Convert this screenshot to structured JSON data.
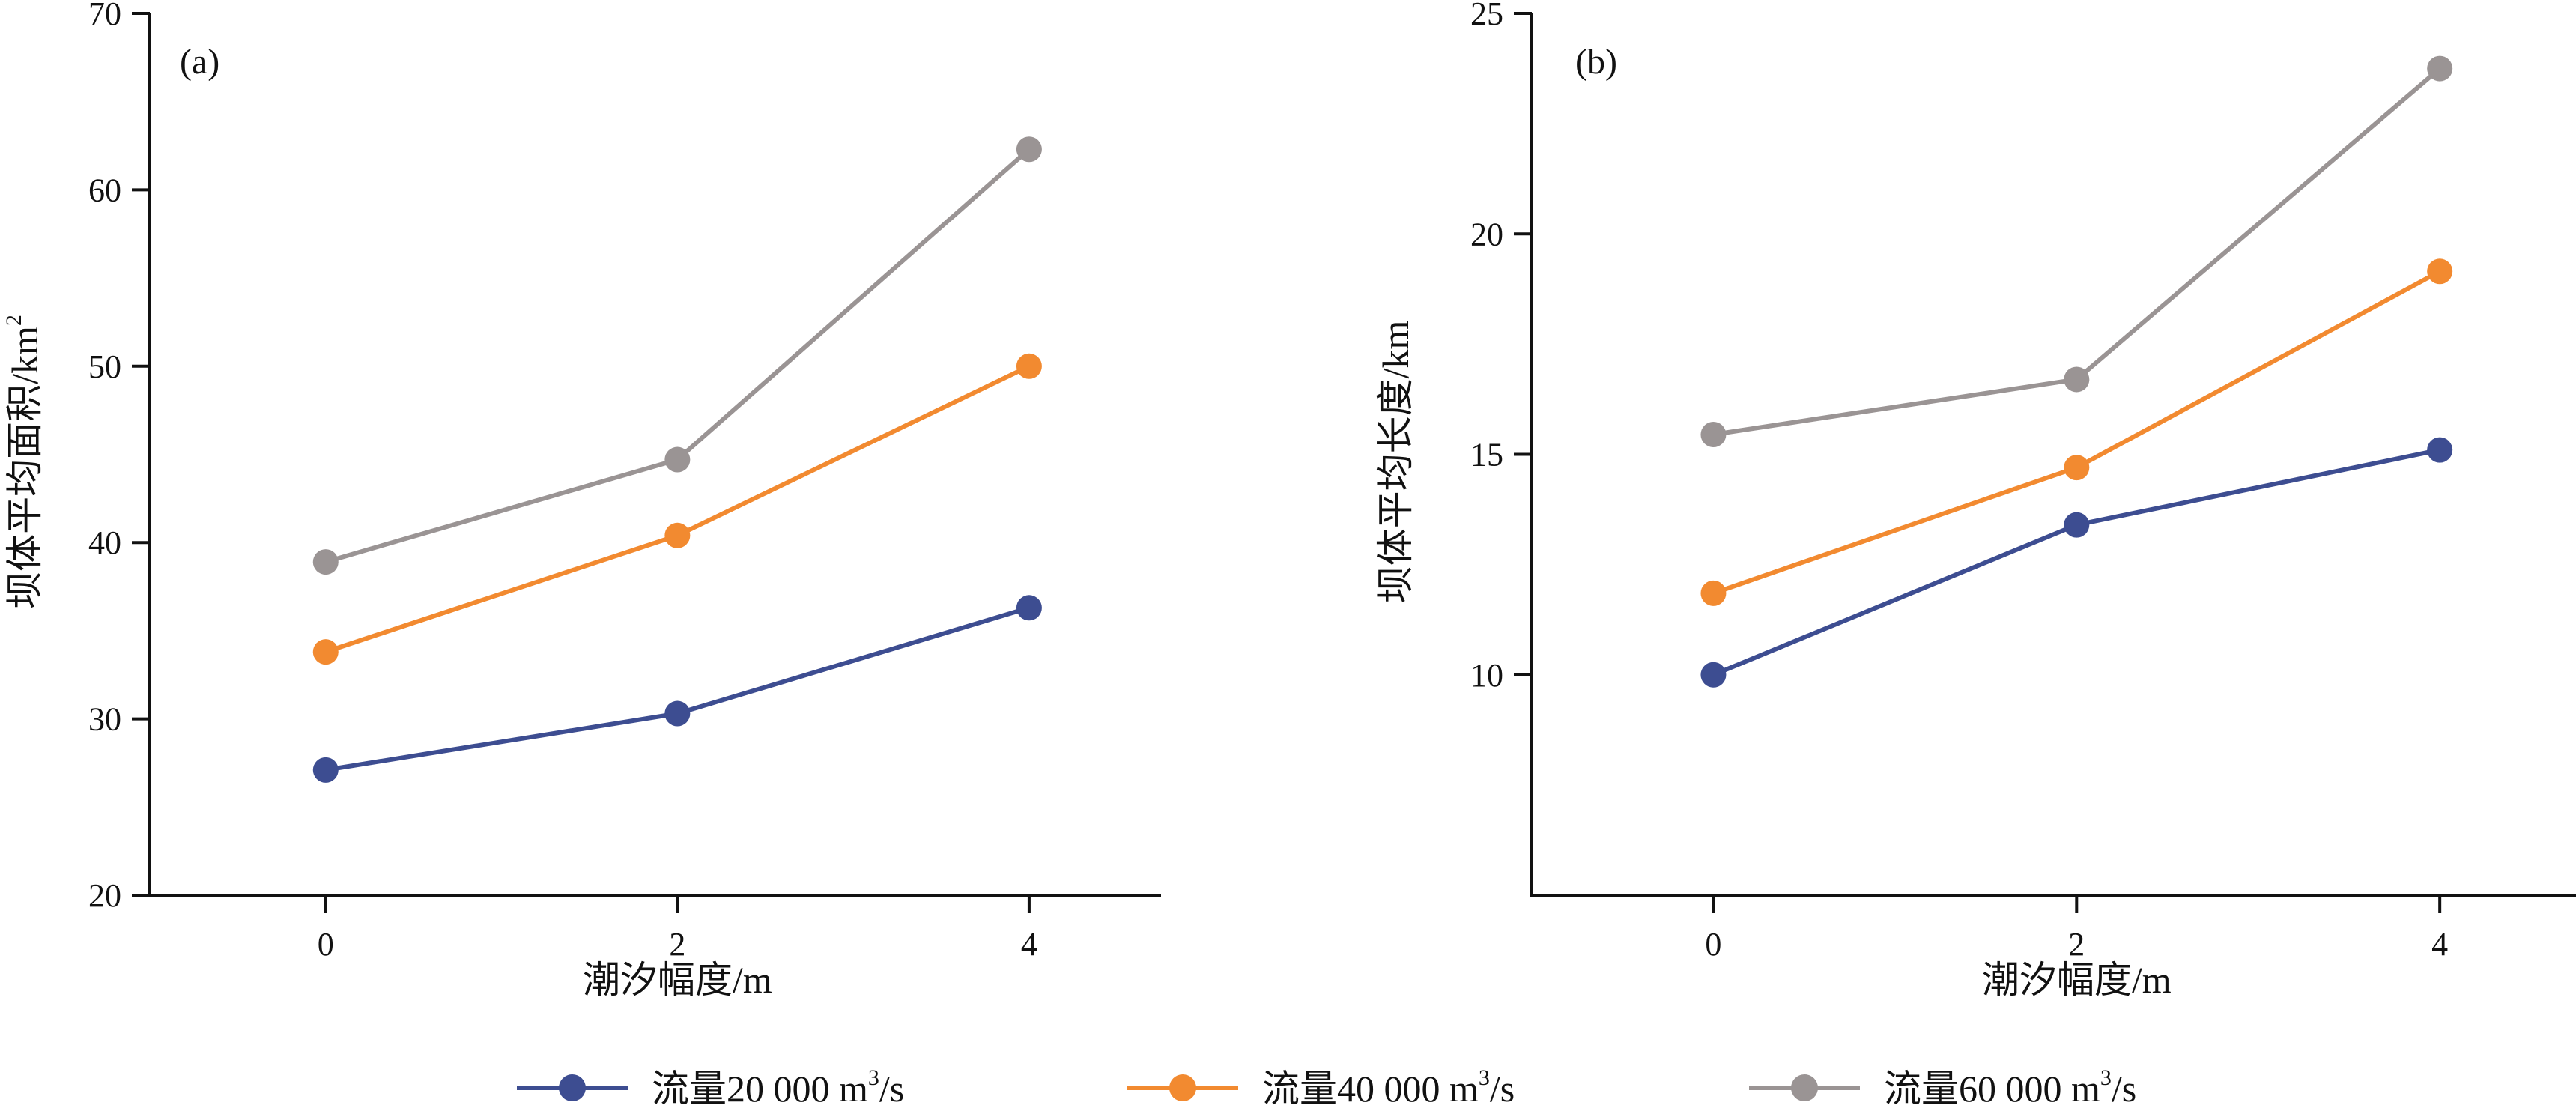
{
  "colors": {
    "series1": "#3d4d91",
    "series2": "#f28a30",
    "series3": "#9a9494",
    "axis": "#111111"
  },
  "legend": {
    "items": [
      {
        "prefix": "流量20 000 m",
        "sup": "3",
        "suffix": "/s",
        "series": 0
      },
      {
        "prefix": "流量40 000 m",
        "sup": "3",
        "suffix": "/s",
        "series": 1
      },
      {
        "prefix": "流量60 000 m",
        "sup": "3",
        "suffix": "/s",
        "series": 2
      }
    ]
  },
  "chart_data": [
    {
      "type": "line",
      "tag": "(a)",
      "xlabel": "潮汐幅度/m",
      "ylabel": {
        "main": "坝体平均面积/km",
        "sup": "2"
      },
      "x": [
        0,
        2,
        4
      ],
      "xlim": [
        -1,
        4.75
      ],
      "ylim": [
        20,
        70
      ],
      "xticks": [
        "0",
        "2",
        "4"
      ],
      "yticks": [
        "20",
        "30",
        "40",
        "50",
        "60",
        "70"
      ],
      "series": [
        {
          "name": "流量20 000 m³/s",
          "values": [
            27.1,
            30.3,
            36.3
          ]
        },
        {
          "name": "流量40 000 m³/s",
          "values": [
            33.8,
            40.4,
            50.0
          ]
        },
        {
          "name": "流量60 000 m³/s",
          "values": [
            38.9,
            44.7,
            62.3
          ]
        }
      ]
    },
    {
      "type": "line",
      "tag": "(b)",
      "xlabel": "潮汐幅度/m",
      "ylabel": {
        "main": "坝体平均长度/km",
        "sup": ""
      },
      "x": [
        0,
        2,
        4
      ],
      "xlim": [
        -1,
        4.75
      ],
      "ylim": [
        5,
        25
      ],
      "xticks": [
        "0",
        "2",
        "4"
      ],
      "yticks": [
        "10",
        "15",
        "20",
        "25"
      ],
      "series": [
        {
          "name": "流量20 000 m³/s",
          "values": [
            10.0,
            13.4,
            15.1
          ]
        },
        {
          "name": "流量40 000 m³/s",
          "values": [
            11.85,
            14.7,
            19.15
          ]
        },
        {
          "name": "流量60 000 m³/s",
          "values": [
            15.45,
            16.7,
            23.75
          ]
        }
      ]
    }
  ]
}
